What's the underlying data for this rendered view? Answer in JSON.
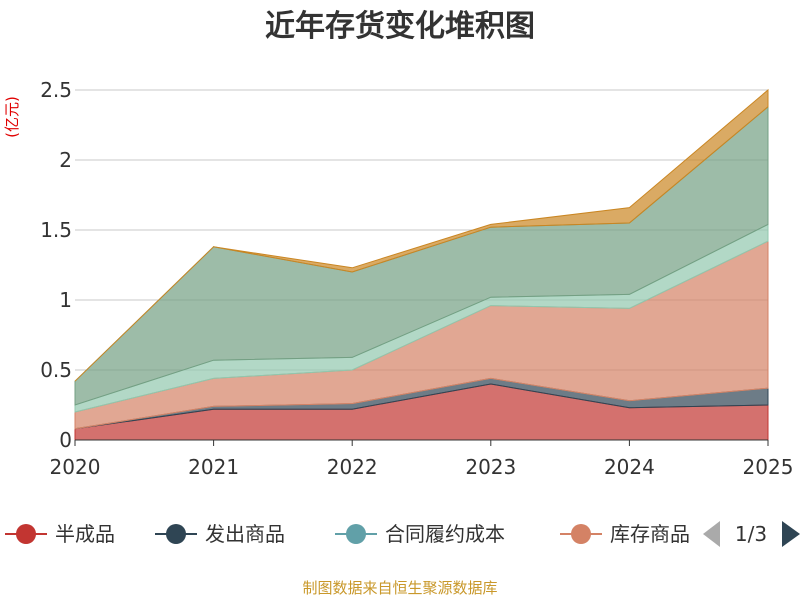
{
  "title": "近年存货变化堆积图",
  "y_unit": "(亿元)",
  "source": "制图数据来自恒生聚源数据库",
  "legend": {
    "items": [
      {
        "label": "半成品",
        "color": "#c23531"
      },
      {
        "label": "发出商品",
        "color": "#2f4554"
      },
      {
        "label": "合同履约成本",
        "color": "#61a0a8"
      },
      {
        "label": "库存商品",
        "color": "#d48265"
      }
    ],
    "page": "1/3",
    "prev_icon": "triangle-left",
    "next_icon": "triangle-right"
  },
  "chart_data": {
    "type": "area",
    "stacked": true,
    "x": [
      "2020",
      "2021",
      "2022",
      "2023",
      "2024",
      "2025"
    ],
    "ylim": [
      0,
      2.5
    ],
    "yticks": [
      "0",
      "0.5",
      "1",
      "1.5",
      "2",
      "2.5"
    ],
    "grid": true,
    "series": [
      {
        "name": "半成品",
        "color": "#c23531",
        "values": [
          0.08,
          0.22,
          0.22,
          0.4,
          0.23,
          0.25
        ]
      },
      {
        "name": "发出商品",
        "color": "#2f4554",
        "values": [
          0.0,
          0.02,
          0.04,
          0.04,
          0.05,
          0.12
        ]
      },
      {
        "name": "合同履约成本",
        "color": "#61a0a8",
        "values": [
          0.0,
          0.0,
          0.0,
          0.0,
          0.0,
          0.0
        ]
      },
      {
        "name": "库存商品",
        "color": "#d48265",
        "values": [
          0.12,
          0.2,
          0.24,
          0.52,
          0.66,
          1.05
        ]
      },
      {
        "color": "#91c7ae",
        "values": [
          0.05,
          0.13,
          0.09,
          0.06,
          0.1,
          0.12
        ]
      },
      {
        "color": "#749f83",
        "values": [
          0.17,
          0.81,
          0.61,
          0.5,
          0.51,
          0.84
        ]
      },
      {
        "color": "#ca8622",
        "values": [
          0.0,
          0.0,
          0.03,
          0.02,
          0.11,
          0.12
        ]
      }
    ]
  }
}
